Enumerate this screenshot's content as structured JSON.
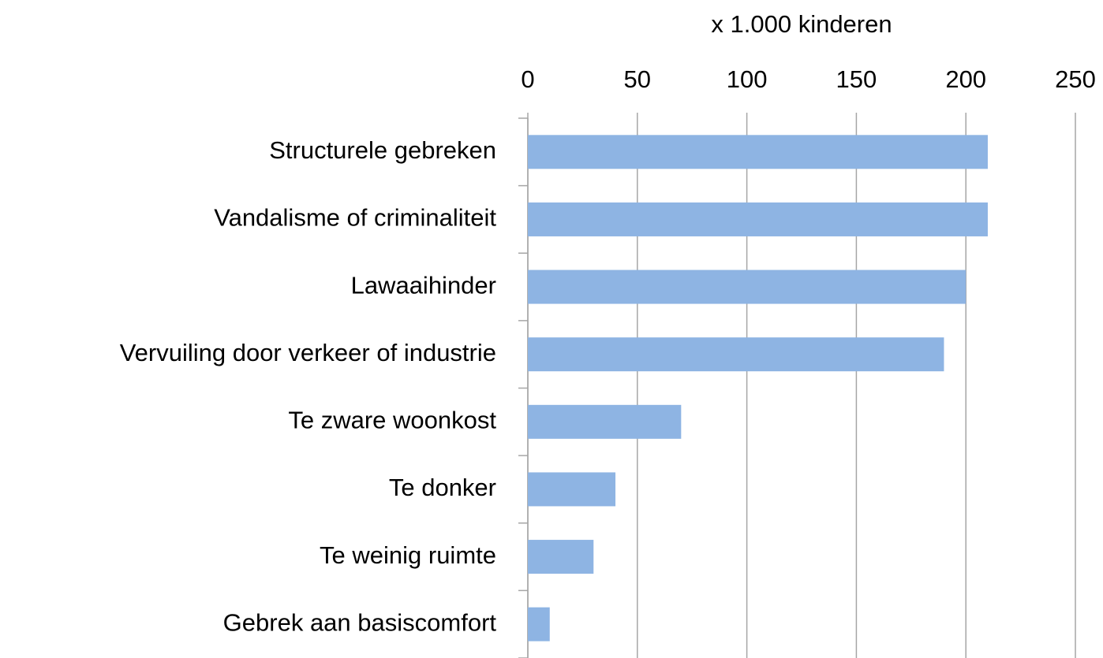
{
  "chart_data": {
    "type": "bar",
    "orientation": "horizontal",
    "x_label": "x 1.000 kinderen",
    "categories": [
      "Structurele gebreken",
      "Vandalisme of criminaliteit",
      "Lawaaihinder",
      "Vervuiling door verkeer of industrie",
      "Te zware woonkost",
      "Te donker",
      "Te weinig ruimte",
      "Gebrek aan basiscomfort"
    ],
    "values": [
      210,
      210,
      200,
      190,
      70,
      40,
      30,
      10
    ],
    "color": "#8eb4e3",
    "xlim": [
      0,
      250
    ],
    "xticks": [
      0,
      50,
      100,
      150,
      200,
      250
    ],
    "grid": true
  }
}
